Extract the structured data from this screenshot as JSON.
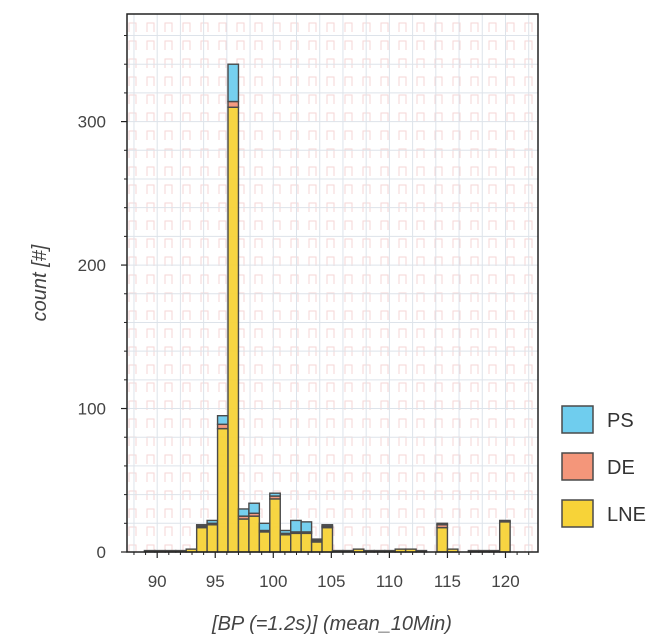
{
  "chart_data": {
    "type": "bar",
    "stacked": true,
    "xlabel": "[BP (=1.2s)] (mean_10Min)",
    "ylabel": "count [#]",
    "xlim": [
      87.4,
      122.8
    ],
    "ylim": [
      0,
      375
    ],
    "x_ticks": [
      90,
      95,
      100,
      105,
      110,
      115,
      120
    ],
    "y_ticks": [
      0,
      100,
      200,
      300
    ],
    "bin_width": 0.9,
    "grid": true,
    "legend_position": "right",
    "bins": [
      88,
      88.9,
      89.8,
      90.7,
      91.6,
      92.5,
      93.4,
      94.3,
      95.2,
      96.1,
      97.0,
      97.9,
      98.8,
      99.7,
      100.6,
      101.5,
      102.4,
      103.3,
      104.2,
      105.1,
      106.0,
      106.9,
      107.8,
      108.7,
      109.6,
      110.5,
      111.4,
      112.3,
      113.2,
      114.1,
      115.0,
      115.9,
      116.8,
      117.7,
      118.6,
      119.5
    ],
    "series": [
      {
        "name": "LNE",
        "color": "#f7d338",
        "values": [
          0,
          1,
          1,
          1,
          1,
          2,
          17,
          19,
          86,
          310,
          23,
          25,
          14,
          37,
          12,
          13,
          13,
          7,
          17,
          1,
          1,
          2,
          1,
          1,
          1,
          2,
          2,
          1,
          0,
          17,
          2,
          0,
          1,
          1,
          1,
          21
        ]
      },
      {
        "name": "DE",
        "color": "#f4967a",
        "values": [
          0,
          0,
          0,
          0,
          0,
          0,
          1,
          1,
          3,
          4,
          2,
          2,
          1,
          2,
          1,
          1,
          1,
          1,
          1,
          0,
          0,
          0,
          0,
          0,
          0,
          0,
          0,
          0,
          0,
          2,
          0,
          0,
          0,
          0,
          0,
          1
        ]
      },
      {
        "name": "PS",
        "color": "#6fcdee",
        "values": [
          0,
          0,
          0,
          0,
          0,
          0,
          1,
          2,
          6,
          26,
          5,
          7,
          5,
          2,
          2,
          8,
          7,
          1,
          1,
          0,
          0,
          0,
          0,
          0,
          0,
          0,
          0,
          0,
          0,
          1,
          0,
          0,
          0,
          0,
          0,
          0
        ]
      }
    ]
  }
}
